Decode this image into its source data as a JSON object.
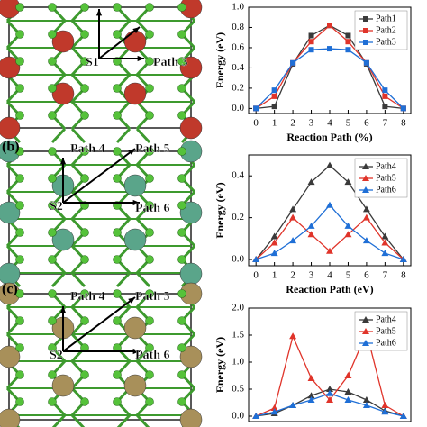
{
  "structures": [
    {
      "labels": [
        "S1",
        "Path 3"
      ]
    },
    {
      "panel_label": "(b)",
      "labels": [
        "Path 4",
        "Path 5",
        "S2",
        "Path 6"
      ]
    },
    {
      "panel_label": "(c)",
      "labels": [
        "Path 4",
        "Path 5",
        "S2",
        "Path 6"
      ]
    }
  ],
  "chart_data": [
    {
      "type": "line",
      "marker": "square",
      "x_label": "Reaction Path (%)",
      "y_label": "Energy (eV)",
      "x": [
        0,
        1,
        2,
        3,
        4,
        5,
        6,
        7,
        8
      ],
      "xlim": [
        -0.4,
        8.4
      ],
      "xticks": [
        0,
        1,
        2,
        3,
        4,
        5,
        6,
        7,
        8
      ],
      "ylim": [
        -0.05,
        1.0
      ],
      "yticks": [
        {
          "value": 0,
          "label": "0.0"
        },
        0.2,
        0.4,
        0.6,
        0.8,
        {
          "value": 1,
          "label": "1.0"
        }
      ],
      "legend": "upper right",
      "series": [
        {
          "name": "Path1",
          "color": "#3a3a3a",
          "values": [
            0,
            0.02,
            0.44,
            0.72,
            0.82,
            0.72,
            0.44,
            0.02,
            0
          ]
        },
        {
          "name": "Path2",
          "color": "#e0342a",
          "values": [
            0,
            0.12,
            0.45,
            0.66,
            0.82,
            0.66,
            0.45,
            0.12,
            0
          ]
        },
        {
          "name": "Path3",
          "color": "#1f6fd6",
          "values": [
            0,
            0.18,
            0.45,
            0.58,
            0.59,
            0.58,
            0.45,
            0.18,
            0
          ]
        }
      ]
    },
    {
      "type": "line",
      "marker": "triangle",
      "x_label": "Reaction Path (eV)",
      "y_label": "Energy (eV)",
      "x": [
        0,
        1,
        2,
        3,
        4,
        5,
        6,
        7,
        8
      ],
      "xlim": [
        -0.4,
        8.4
      ],
      "xticks": [
        0,
        1,
        2,
        3,
        4,
        5,
        6,
        7,
        8
      ],
      "ylim": [
        -0.03,
        0.5
      ],
      "yticks": [
        {
          "value": 0,
          "label": "0.0"
        },
        0.2,
        0.4
      ],
      "legend": "upper right",
      "series": [
        {
          "name": "Path4",
          "color": "#3a3a3a",
          "values": [
            0,
            0.11,
            0.24,
            0.37,
            0.45,
            0.37,
            0.24,
            0.11,
            0
          ]
        },
        {
          "name": "Path5",
          "color": "#e0342a",
          "values": [
            0,
            0.08,
            0.2,
            0.12,
            0.04,
            0.12,
            0.2,
            0.08,
            0
          ]
        },
        {
          "name": "Path6",
          "color": "#1f6fd6",
          "values": [
            0,
            0.03,
            0.09,
            0.16,
            0.26,
            0.16,
            0.09,
            0.03,
            0
          ]
        }
      ]
    },
    {
      "type": "line",
      "marker": "triangle",
      "y_label": "Energy (eV)",
      "x": [
        0,
        1,
        2,
        3,
        4,
        5,
        6,
        7,
        8
      ],
      "xlim": [
        -0.4,
        8.4
      ],
      "ylim": [
        -0.1,
        2.0
      ],
      "yticks": [
        {
          "value": 0,
          "label": "0.0"
        },
        0.5,
        {
          "value": 1,
          "label": "1.0"
        },
        1.5,
        {
          "value": 2,
          "label": "2.0"
        }
      ],
      "legend": "upper right",
      "series": [
        {
          "name": "Path4",
          "color": "#3a3a3a",
          "values": [
            0,
            0.05,
            0.2,
            0.38,
            0.5,
            0.45,
            0.3,
            0.1,
            0
          ]
        },
        {
          "name": "Path5",
          "color": "#e0342a",
          "values": [
            0,
            0.15,
            1.48,
            0.7,
            0.3,
            0.75,
            1.55,
            0.2,
            0
          ]
        },
        {
          "name": "Path6",
          "color": "#1f6fd6",
          "values": [
            0,
            0.08,
            0.2,
            0.3,
            0.42,
            0.3,
            0.2,
            0.08,
            0
          ]
        }
      ]
    }
  ]
}
